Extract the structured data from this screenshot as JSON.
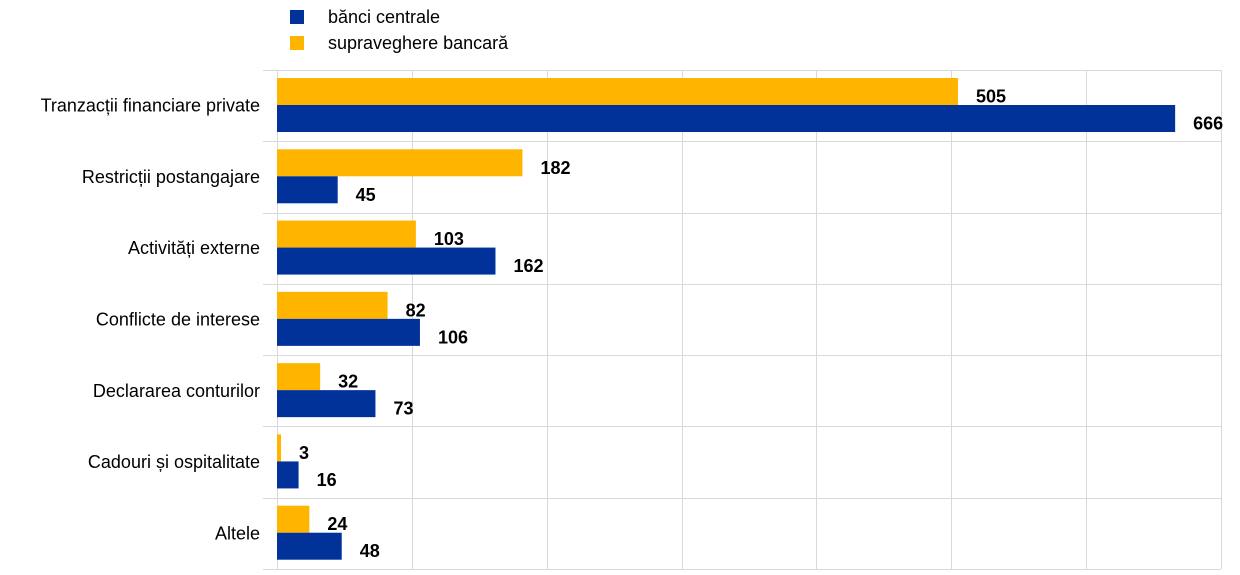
{
  "chart_data": {
    "type": "bar",
    "orientation": "horizontal",
    "categories": [
      "Tranzacții financiare private",
      "Restricții postangajare",
      "Activități externe",
      "Conflicte de interese",
      "Declararea conturilor ",
      "Cadouri și ospitalitate",
      "Altele"
    ],
    "series": [
      {
        "name": "supraveghere bancară",
        "color": "#ffb400",
        "values": [
          505,
          182,
          103,
          82,
          32,
          3,
          24
        ]
      },
      {
        "name": "bănci centrale",
        "color": "#003299",
        "values": [
          666,
          45,
          162,
          106,
          73,
          16,
          48
        ]
      }
    ],
    "legend_order": [
      1,
      0
    ],
    "legend_position": "top-left",
    "xlim": [
      0,
      700
    ],
    "x_gridlines_at": [
      0,
      100,
      200,
      300,
      400,
      500,
      600,
      700
    ],
    "x_tick_labels_shown": false,
    "grid": true,
    "data_labels": true,
    "title": "",
    "xlabel": "",
    "ylabel": ""
  }
}
